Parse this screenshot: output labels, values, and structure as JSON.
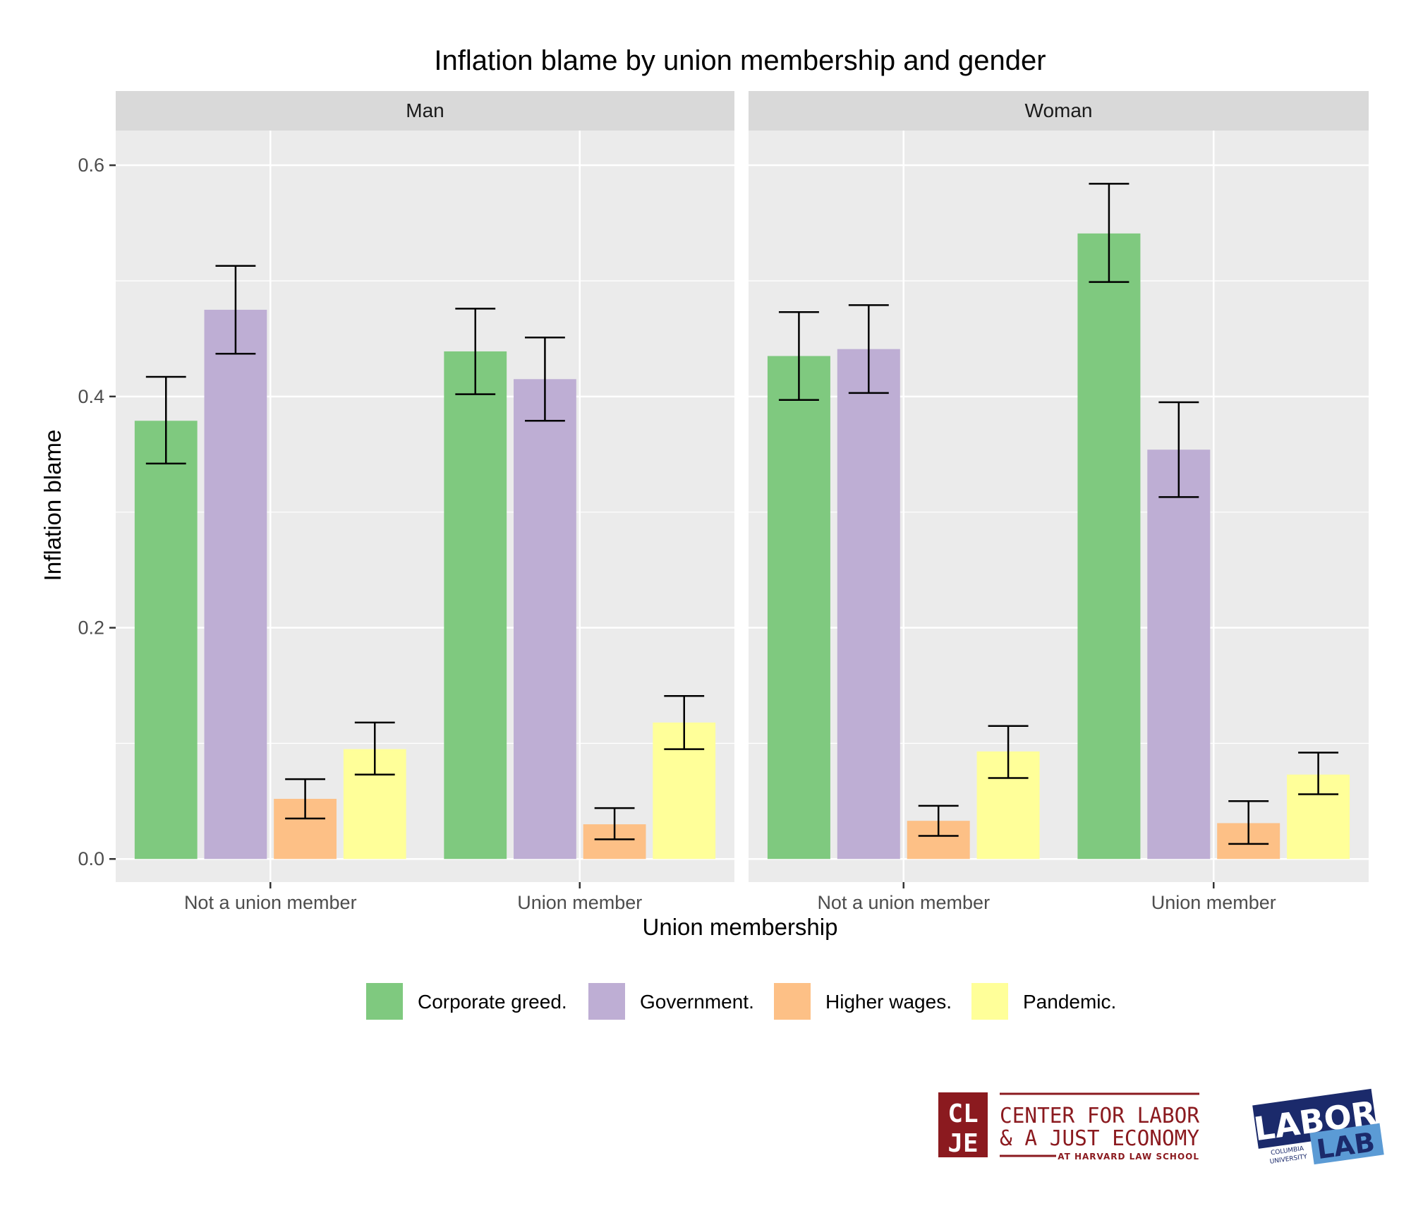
{
  "chart_data": {
    "type": "bar",
    "title": "Inflation blame by union membership and gender",
    "xlabel": "Union membership",
    "ylabel": "Inflation blame",
    "ylim": [
      -0.02,
      0.63
    ],
    "yticks": [
      0.0,
      0.2,
      0.4,
      0.6
    ],
    "ytick_labels": [
      "0.0",
      "0.2",
      "0.4",
      "0.6"
    ],
    "grid": true,
    "legend_position": "bottom",
    "categories": [
      "Not a union member",
      "Union member"
    ],
    "facets": [
      "Man",
      "Woman"
    ],
    "series": [
      {
        "name": "Corporate greed.",
        "color": "#7FC97F",
        "values": [
          [
            0.379,
            0.439
          ],
          [
            0.435,
            0.541
          ]
        ],
        "ci_low": [
          [
            0.342,
            0.402
          ],
          [
            0.397,
            0.499
          ]
        ],
        "ci_high": [
          [
            0.417,
            0.476
          ],
          [
            0.473,
            0.584
          ]
        ]
      },
      {
        "name": "Government.",
        "color": "#BEAED4",
        "values": [
          [
            0.475,
            0.415
          ],
          [
            0.441,
            0.354
          ]
        ],
        "ci_low": [
          [
            0.437,
            0.379
          ],
          [
            0.403,
            0.313
          ]
        ],
        "ci_high": [
          [
            0.513,
            0.451
          ],
          [
            0.479,
            0.395
          ]
        ]
      },
      {
        "name": "Higher wages.",
        "color": "#FDC086",
        "values": [
          [
            0.052,
            0.03
          ],
          [
            0.033,
            0.031
          ]
        ],
        "ci_low": [
          [
            0.035,
            0.017
          ],
          [
            0.02,
            0.013
          ]
        ],
        "ci_high": [
          [
            0.069,
            0.044
          ],
          [
            0.046,
            0.05
          ]
        ]
      },
      {
        "name": "Pandemic.",
        "color": "#FFFF99",
        "values": [
          [
            0.095,
            0.118
          ],
          [
            0.093,
            0.073
          ]
        ],
        "ci_low": [
          [
            0.073,
            0.095
          ],
          [
            0.07,
            0.056
          ]
        ],
        "ci_high": [
          [
            0.118,
            0.141
          ],
          [
            0.115,
            0.092
          ]
        ]
      }
    ]
  },
  "logos": {
    "clje": {
      "letters": [
        "CL",
        "JE"
      ],
      "line1": "CENTER FOR LABOR",
      "line2": "& A JUST ECONOMY",
      "line3": "AT HARVARD LAW SCHOOL",
      "color": "#8B1A1F"
    },
    "laborlab": {
      "word1": "LABOR",
      "word2": "LAB",
      "small1": "COLUMBIA",
      "small2": "UNIVERSITY",
      "color_dark": "#1B2A6B",
      "color_light": "#5B9BD5"
    }
  }
}
